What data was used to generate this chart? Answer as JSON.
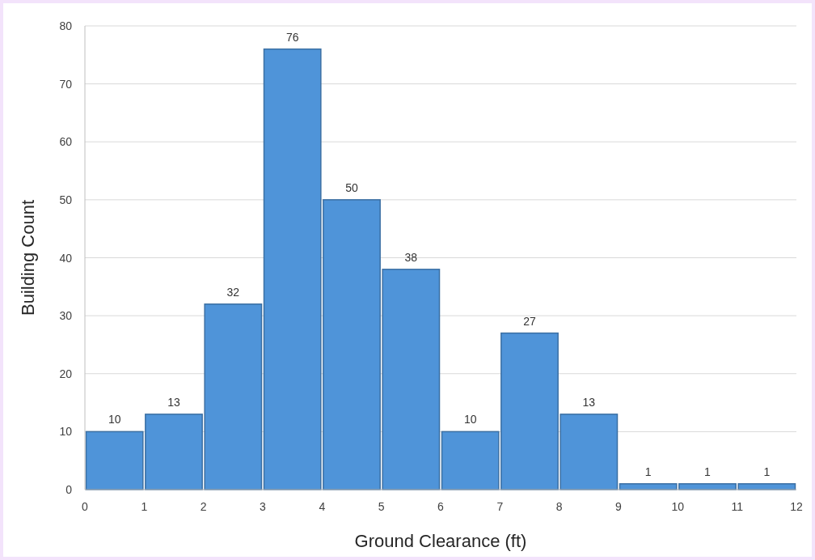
{
  "chart_data": {
    "type": "histogram",
    "xlabel": "Ground Clearance (ft)",
    "ylabel": "Building Count",
    "bins": [
      0,
      1,
      2,
      3,
      4,
      5,
      6,
      7,
      8,
      9,
      10,
      11,
      12
    ],
    "values": [
      10,
      13,
      32,
      76,
      50,
      38,
      10,
      27,
      13,
      1,
      1,
      1
    ],
    "color": "#4f94d9",
    "xlim": [
      0,
      12
    ],
    "xticks": [
      0,
      1,
      2,
      3,
      4,
      5,
      6,
      7,
      8,
      9,
      10,
      11,
      12
    ],
    "ylim": [
      0,
      80
    ],
    "yticks": [
      0,
      10,
      20,
      30,
      40,
      50,
      60,
      70,
      80
    ],
    "grid": "y",
    "data_labels": true
  }
}
